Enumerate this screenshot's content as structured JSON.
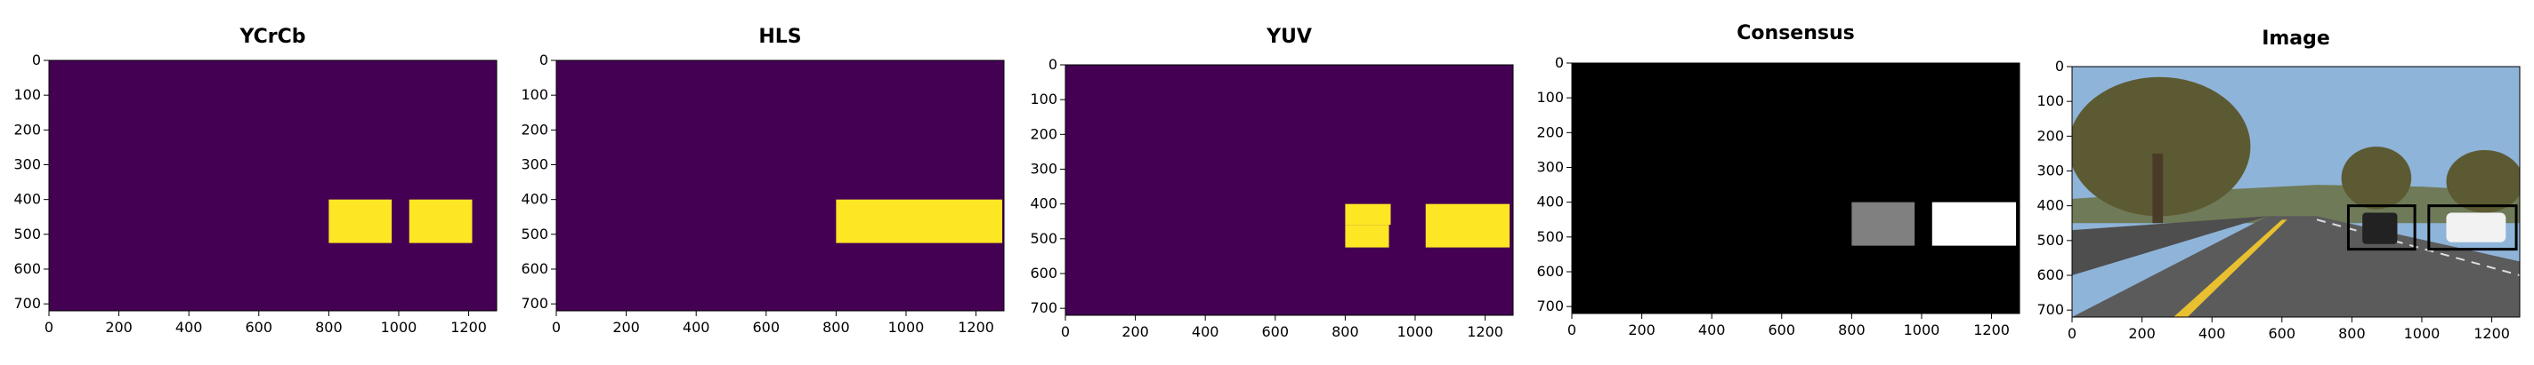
{
  "chart_data": [
    {
      "type": "heatmap",
      "title": "YCrCb",
      "xlim": [
        0,
        1280
      ],
      "ylim": [
        720,
        0
      ],
      "xticks": [
        0,
        200,
        400,
        600,
        800,
        1000,
        1200
      ],
      "yticks": [
        0,
        100,
        200,
        300,
        400,
        500,
        600,
        700
      ],
      "background_color": "#440154",
      "regions": [
        {
          "x0": 800,
          "x1": 980,
          "y0": 400,
          "y1": 525,
          "color": "#fde725"
        },
        {
          "x0": 1030,
          "x1": 1210,
          "y0": 400,
          "y1": 525,
          "color": "#fde725"
        }
      ]
    },
    {
      "type": "heatmap",
      "title": "HLS",
      "xlim": [
        0,
        1280
      ],
      "ylim": [
        720,
        0
      ],
      "xticks": [
        0,
        200,
        400,
        600,
        800,
        1000,
        1200
      ],
      "yticks": [
        0,
        100,
        200,
        300,
        400,
        500,
        600,
        700
      ],
      "background_color": "#440154",
      "regions": [
        {
          "x0": 800,
          "x1": 1275,
          "y0": 400,
          "y1": 525,
          "color": "#fde725"
        }
      ]
    },
    {
      "type": "heatmap",
      "title": "YUV",
      "xlim": [
        0,
        1280
      ],
      "ylim": [
        720,
        0
      ],
      "xticks": [
        0,
        200,
        400,
        600,
        800,
        1000,
        1200
      ],
      "yticks": [
        0,
        100,
        200,
        300,
        400,
        500,
        600,
        700
      ],
      "background_color": "#440154",
      "regions": [
        {
          "x0": 800,
          "x1": 930,
          "y0": 400,
          "y1": 460,
          "color": "#fde725"
        },
        {
          "x0": 800,
          "x1": 925,
          "y0": 460,
          "y1": 525,
          "color": "#fde725"
        },
        {
          "x0": 1030,
          "x1": 1270,
          "y0": 400,
          "y1": 525,
          "color": "#fde725"
        }
      ]
    },
    {
      "type": "heatmap",
      "title": "Consensus",
      "xlim": [
        0,
        1280
      ],
      "ylim": [
        720,
        0
      ],
      "xticks": [
        0,
        200,
        400,
        600,
        800,
        1000,
        1200
      ],
      "yticks": [
        0,
        100,
        200,
        300,
        400,
        500,
        600,
        700
      ],
      "background_color": "#000000",
      "regions": [
        {
          "x0": 800,
          "x1": 980,
          "y0": 400,
          "y1": 525,
          "color": "#808080"
        },
        {
          "x0": 1030,
          "x1": 1270,
          "y0": 400,
          "y1": 525,
          "color": "#ffffff"
        }
      ]
    },
    {
      "type": "image",
      "title": "Image",
      "xlim": [
        0,
        1280
      ],
      "ylim": [
        720,
        0
      ],
      "xticks": [
        0,
        200,
        400,
        600,
        800,
        1000,
        1200
      ],
      "yticks": [
        0,
        100,
        200,
        300,
        400,
        500,
        600,
        700
      ],
      "colors": {
        "sky": "#8fb4d9",
        "trees": "#5c5a32",
        "road": "#5b5b5b",
        "barrier": "#4e4e4e",
        "lane_line": "#e8c030",
        "car_dark": "#222222",
        "car_white": "#f2f2f2"
      },
      "detections": [
        {
          "x0": 790,
          "x1": 980,
          "y0": 400,
          "y1": 525
        },
        {
          "x0": 1020,
          "x1": 1270,
          "y0": 400,
          "y1": 525
        }
      ]
    }
  ]
}
